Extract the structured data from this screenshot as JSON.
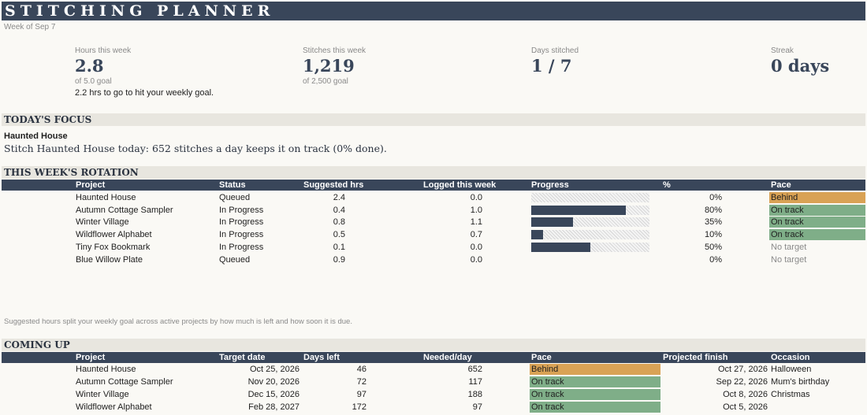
{
  "app_title": "STITCHING PLANNER",
  "week_label": "Week of Sep 7",
  "kpis": {
    "hours": {
      "label": "Hours this week",
      "value": "2.8",
      "sub": "of 5.0 goal",
      "note": "2.2 hrs to go to hit your weekly goal."
    },
    "stitches": {
      "label": "Stitches this week",
      "value": "1,219",
      "sub": "of 2,500 goal"
    },
    "days": {
      "label": "Days stitched",
      "value": "1 / 7"
    },
    "streak": {
      "label": "Streak",
      "value": "0 days"
    }
  },
  "focus": {
    "section_title": "TODAY'S FOCUS",
    "project": "Haunted House",
    "message": "Stitch Haunted House today: 652 stitches a day keeps it on track (0% done)."
  },
  "rotation": {
    "section_title": "THIS WEEK'S ROTATION",
    "headers": [
      "Project",
      "Status",
      "Suggested hrs",
      "Logged this week",
      "Progress",
      "%",
      "Pace"
    ],
    "rows": [
      {
        "project": "Haunted House",
        "status": "Queued",
        "suggested": "2.4",
        "logged": "0.0",
        "progress": 0.0,
        "pct": "0%",
        "pace": "Behind",
        "pace_kind": "behind"
      },
      {
        "project": "Autumn Cottage Sampler",
        "status": "In Progress",
        "suggested": "0.4",
        "logged": "1.0",
        "progress": 0.8,
        "pct": "80%",
        "pace": "On track",
        "pace_kind": "ontrack"
      },
      {
        "project": "Winter Village",
        "status": "In Progress",
        "suggested": "0.8",
        "logged": "1.1",
        "progress": 0.35,
        "pct": "35%",
        "pace": "On track",
        "pace_kind": "ontrack"
      },
      {
        "project": "Wildflower Alphabet",
        "status": "In Progress",
        "suggested": "0.5",
        "logged": "0.7",
        "progress": 0.1,
        "pct": "10%",
        "pace": "On track",
        "pace_kind": "ontrack"
      },
      {
        "project": "Tiny Fox Bookmark",
        "status": "In Progress",
        "suggested": "0.1",
        "logged": "0.0",
        "progress": 0.5,
        "pct": "50%",
        "pace": "No target",
        "pace_kind": "none"
      },
      {
        "project": "Blue Willow Plate",
        "status": "Queued",
        "suggested": "0.9",
        "logged": "0.0",
        "progress": 0.0,
        "pct": "0%",
        "pace": "No target",
        "pace_kind": "none"
      }
    ],
    "footnote": "Suggested hours split your weekly goal across active projects by how much is left and how soon it is due."
  },
  "coming_up": {
    "section_title": "COMING UP",
    "headers": [
      "Project",
      "Target date",
      "Days left",
      "Needed/day",
      "Pace",
      "Projected finish",
      "Occasion"
    ],
    "rows": [
      {
        "project": "Haunted House",
        "target": "Oct 25, 2026",
        "days_left": "46",
        "needed": "652",
        "pace": "Behind",
        "pace_kind": "behind",
        "finish": "Oct 27, 2026",
        "occasion": "Halloween"
      },
      {
        "project": "Autumn Cottage Sampler",
        "target": "Nov 20, 2026",
        "days_left": "72",
        "needed": "117",
        "pace": "On track",
        "pace_kind": "ontrack",
        "finish": "Sep 22, 2026",
        "occasion": "Mum's birthday"
      },
      {
        "project": "Winter Village",
        "target": "Dec 15, 2026",
        "days_left": "97",
        "needed": "188",
        "pace": "On track",
        "pace_kind": "ontrack",
        "finish": "Oct 8, 2026",
        "occasion": "Christmas"
      },
      {
        "project": "Wildflower Alphabet",
        "target": "Feb 28, 2027",
        "days_left": "172",
        "needed": "97",
        "pace": "On track",
        "pace_kind": "ontrack",
        "finish": "Oct 5, 2026",
        "occasion": ""
      }
    ]
  },
  "colors": {
    "banner": "#39465a",
    "behind": "#d9a255",
    "on_track": "#7fae88",
    "section": "#e8e6df"
  }
}
